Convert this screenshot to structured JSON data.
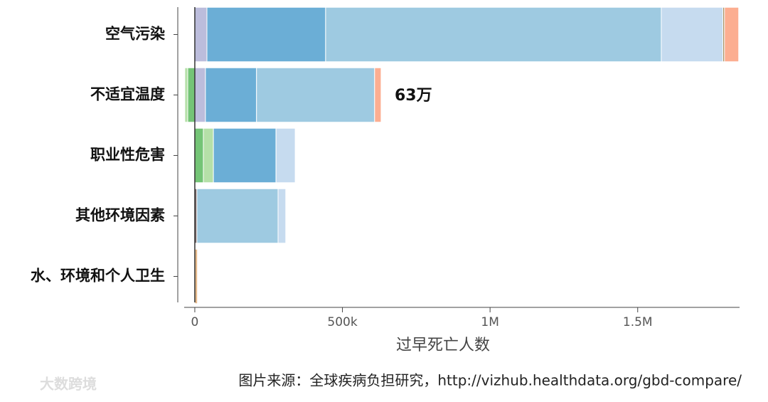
{
  "chart_data": {
    "type": "stacked-bar-horizontal",
    "categories": [
      "空气污染",
      "不适宜温度",
      "职业性危害",
      "其他环境因素",
      "水、环境和个人卫生"
    ],
    "series": [
      {
        "color": "#74c476",
        "values": [
          0,
          -24000,
          29000,
          0,
          0
        ]
      },
      {
        "color": "#b5e0a8",
        "values": [
          0,
          -10000,
          34000,
          0,
          0
        ]
      },
      {
        "color": "#bcbddc",
        "values": [
          41000,
          36000,
          0,
          0,
          0
        ]
      },
      {
        "color": "#7a6a6a",
        "values": [
          0,
          0,
          0,
          7000,
          0
        ]
      },
      {
        "color": "#6baed6",
        "values": [
          402000,
          173000,
          212000,
          0,
          0
        ]
      },
      {
        "color": "#9ecae1",
        "values": [
          1137000,
          400000,
          0,
          275000,
          0
        ]
      },
      {
        "color": "#c6dbef",
        "values": [
          209000,
          0,
          65000,
          26000,
          0
        ]
      },
      {
        "color": "#8c6d31",
        "values": [
          5000,
          0,
          0,
          0,
          0
        ]
      },
      {
        "color": "#fcae91",
        "values": [
          48000,
          22000,
          0,
          0,
          0
        ]
      },
      {
        "color": "#e6b98a",
        "values": [
          0,
          0,
          0,
          0,
          9000
        ]
      }
    ],
    "xlim": [
      -36000,
      1845000
    ],
    "xticks": [
      0,
      {
        "value": 500000,
        "label": "500k"
      },
      {
        "value": 1000000,
        "label": "1M"
      },
      {
        "value": 1500000,
        "label": "1.5M"
      }
    ],
    "xlabel": "过早死亡人数",
    "annotation": "63万",
    "source": "图片来源：全球疾病负担研究，http://vizhub.healthdata.org/gbd-compare/",
    "watermark": "大数跨境"
  }
}
